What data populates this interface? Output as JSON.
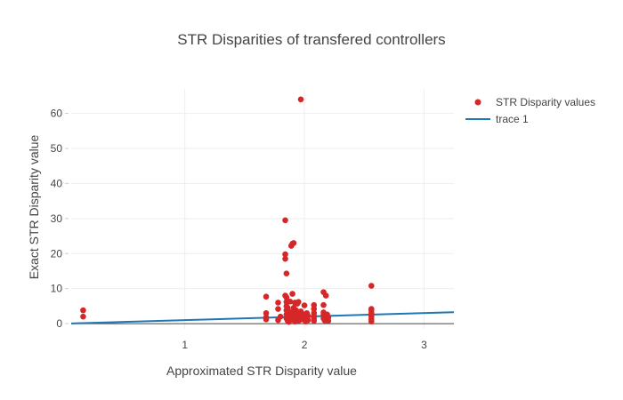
{
  "chart_data": {
    "type": "scatter",
    "title": "STR Disparities of transfered controllers",
    "xlabel": "Approximated STR Disparity value",
    "ylabel": "Exact STR Disparity value",
    "xlim": [
      0.05,
      3.25
    ],
    "ylim": [
      -1.5,
      67
    ],
    "x_ticks": [
      1,
      2,
      3
    ],
    "x_tick_labels": [
      "1",
      "2",
      "3"
    ],
    "y_ticks": [
      0,
      10,
      20,
      30,
      40,
      50,
      60
    ],
    "y_tick_labels": [
      "0",
      "10",
      "20",
      "30",
      "40",
      "50",
      "60"
    ],
    "grid": true,
    "legend_position": "top-right",
    "series": [
      {
        "name": "STR Disparity values",
        "mode": "markers",
        "color": "#d62728",
        "x": [
          0.15,
          0.15,
          1.68,
          1.68,
          1.68,
          1.68,
          1.78,
          1.78,
          1.78,
          1.8,
          1.84,
          1.84,
          1.84,
          1.84,
          1.85,
          1.85,
          1.85,
          1.85,
          1.85,
          1.85,
          1.85,
          1.86,
          1.86,
          1.86,
          1.87,
          1.87,
          1.88,
          1.88,
          1.88,
          1.89,
          1.89,
          1.9,
          1.9,
          1.9,
          1.91,
          1.91,
          1.92,
          1.92,
          1.92,
          1.93,
          1.93,
          1.93,
          1.94,
          1.94,
          1.95,
          1.95,
          1.95,
          1.96,
          1.96,
          1.97,
          1.97,
          1.98,
          1.98,
          1.99,
          2.0,
          2.0,
          2.01,
          2.01,
          2.02,
          2.02,
          2.03,
          2.03,
          2.08,
          2.08,
          2.08,
          2.08,
          2.08,
          2.08,
          2.16,
          2.16,
          2.16,
          2.16,
          2.16,
          2.17,
          2.18,
          2.18,
          2.19,
          2.19,
          2.2,
          2.2,
          2.56,
          2.56,
          2.56,
          2.56,
          2.56,
          2.56,
          2.56,
          2.56
        ],
        "y": [
          3.8,
          2.0,
          7.7,
          3.0,
          1.8,
          1.2,
          6.0,
          4.2,
          1.0,
          2.0,
          29.5,
          19.8,
          18.5,
          8.0,
          14.3,
          7.5,
          6.2,
          5.0,
          3.8,
          2.6,
          1.5,
          4.5,
          2.2,
          0.8,
          3.5,
          0.5,
          6.3,
          2.8,
          1.0,
          22.2,
          3.2,
          22.8,
          8.5,
          1.8,
          23.0,
          4.5,
          6.0,
          2.5,
          0.6,
          3.8,
          1.5,
          0.8,
          5.7,
          2.2,
          6.2,
          3.0,
          0.9,
          2.0,
          1.0,
          64.0,
          3.5,
          2.8,
          1.5,
          1.2,
          5.2,
          2.5,
          1.8,
          0.6,
          3.0,
          1.3,
          1.0,
          2.2,
          5.3,
          4.2,
          3.0,
          2.2,
          1.5,
          0.8,
          9.0,
          5.3,
          3.2,
          2.5,
          1.5,
          0.9,
          8.0,
          2.0,
          2.6,
          1.2,
          1.8,
          0.8,
          10.8,
          4.2,
          3.8,
          3.0,
          2.5,
          2.0,
          1.3,
          0.6
        ]
      },
      {
        "name": "trace 1",
        "mode": "lines",
        "color": "#1f77b4",
        "x": [
          0.05,
          3.25
        ],
        "y": [
          0.05,
          3.25
        ]
      }
    ]
  }
}
